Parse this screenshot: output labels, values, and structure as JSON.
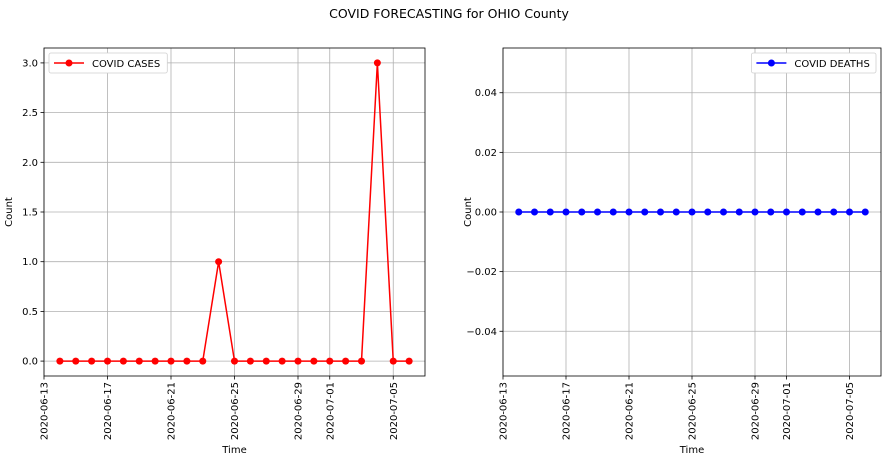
{
  "figure": {
    "title": "COVID FORECASTING for OHIO County"
  },
  "chart_data": [
    {
      "type": "line",
      "xlabel": "Time",
      "ylabel": "Count",
      "xlim": [
        "2020-06-13",
        "2020-07-07"
      ],
      "ylim": [
        -0.15,
        3.15
      ],
      "yticks": [
        0.0,
        0.5,
        1.0,
        1.5,
        2.0,
        2.5,
        3.0
      ],
      "ytick_labels": [
        "0.0",
        "0.5",
        "1.0",
        "1.5",
        "2.0",
        "2.5",
        "3.0"
      ],
      "xticks": [
        "2020-06-13",
        "2020-06-17",
        "2020-06-21",
        "2020-06-25",
        "2020-06-29",
        "2020-07-01",
        "2020-07-05"
      ],
      "grid": true,
      "legend": "upper left",
      "series": [
        {
          "name": "COVID CASES",
          "color": "#ff0000",
          "marker": "circle",
          "x": [
            "2020-06-14",
            "2020-06-15",
            "2020-06-16",
            "2020-06-17",
            "2020-06-18",
            "2020-06-19",
            "2020-06-20",
            "2020-06-21",
            "2020-06-22",
            "2020-06-23",
            "2020-06-24",
            "2020-06-25",
            "2020-06-26",
            "2020-06-27",
            "2020-06-28",
            "2020-06-29",
            "2020-06-30",
            "2020-07-01",
            "2020-07-02",
            "2020-07-03",
            "2020-07-04",
            "2020-07-05",
            "2020-07-06"
          ],
          "y": [
            0,
            0,
            0,
            0,
            0,
            0,
            0,
            0,
            0,
            0,
            1,
            0,
            0,
            0,
            0,
            0,
            0,
            0,
            0,
            0,
            3,
            0,
            0
          ]
        }
      ]
    },
    {
      "type": "line",
      "xlabel": "Time",
      "ylabel": "Count",
      "xlim": [
        "2020-06-13",
        "2020-07-07"
      ],
      "ylim": [
        -0.055,
        0.055
      ],
      "yticks": [
        -0.04,
        -0.02,
        0.0,
        0.02,
        0.04
      ],
      "ytick_labels": [
        "−0.04",
        "−0.02",
        "0.00",
        "0.02",
        "0.04"
      ],
      "xticks": [
        "2020-06-13",
        "2020-06-17",
        "2020-06-21",
        "2020-06-25",
        "2020-06-29",
        "2020-07-01",
        "2020-07-05"
      ],
      "grid": true,
      "legend": "upper right",
      "series": [
        {
          "name": "COVID DEATHS",
          "color": "#0000ff",
          "marker": "circle",
          "x": [
            "2020-06-14",
            "2020-06-15",
            "2020-06-16",
            "2020-06-17",
            "2020-06-18",
            "2020-06-19",
            "2020-06-20",
            "2020-06-21",
            "2020-06-22",
            "2020-06-23",
            "2020-06-24",
            "2020-06-25",
            "2020-06-26",
            "2020-06-27",
            "2020-06-28",
            "2020-06-29",
            "2020-06-30",
            "2020-07-01",
            "2020-07-02",
            "2020-07-03",
            "2020-07-04",
            "2020-07-05",
            "2020-07-06"
          ],
          "y": [
            0,
            0,
            0,
            0,
            0,
            0,
            0,
            0,
            0,
            0,
            0,
            0,
            0,
            0,
            0,
            0,
            0,
            0,
            0,
            0,
            0,
            0,
            0
          ]
        }
      ]
    }
  ]
}
